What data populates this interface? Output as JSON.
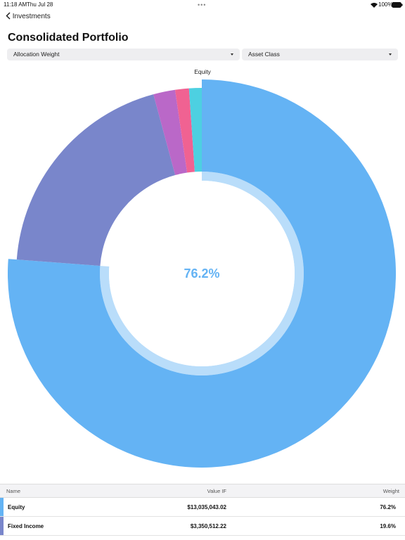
{
  "status_bar": {
    "time": "11:18 AM",
    "date": "Thu Jul 28",
    "battery": "100%"
  },
  "nav": {
    "back": "Investments"
  },
  "title": "Consolidated Portfolio",
  "dropdowns": [
    "Allocation Weight",
    "Asset Class"
  ],
  "chart_data": {
    "type": "pie",
    "selected_label": "Equity",
    "center_label": "76.2%",
    "categories": [
      "Equity",
      "Fixed Income",
      null,
      null,
      null
    ],
    "values": [
      76.2,
      19.6,
      1.9,
      1.2,
      1.1
    ],
    "colors": [
      "#64b3f4",
      "#7986cb",
      "#ba68c8",
      "#f06292",
      "#4dd0e1"
    ]
  },
  "table": {
    "columns": [
      "Name",
      "Value IF",
      "Weight"
    ],
    "rows": [
      [
        "Equity",
        "$13,035,043.02",
        "76.2%"
      ],
      [
        "Fixed Income",
        "$3,350,512.22",
        "19.6%"
      ]
    ]
  }
}
